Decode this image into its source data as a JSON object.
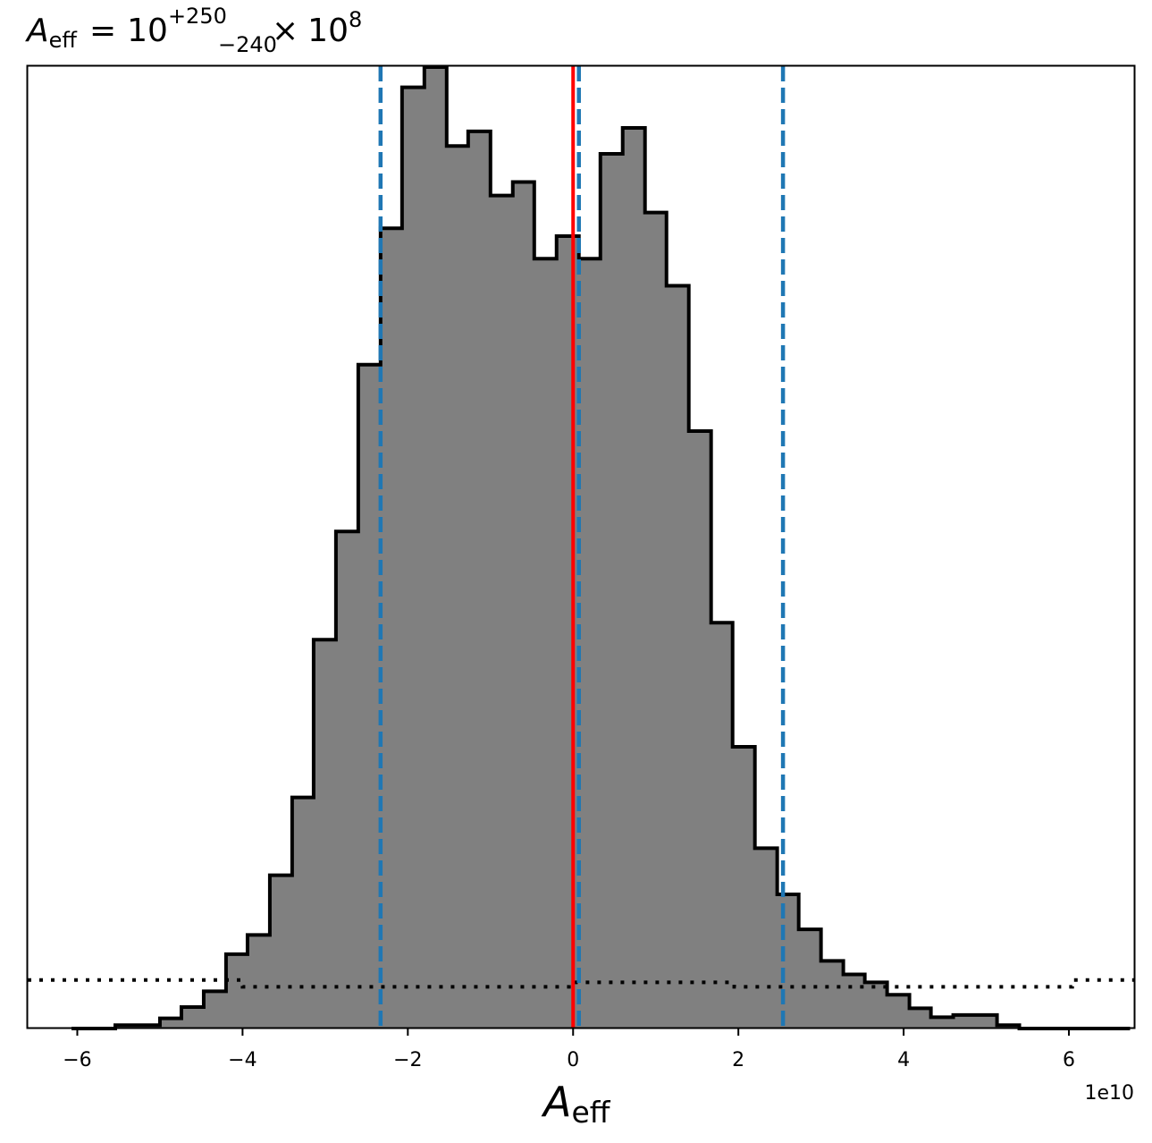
{
  "chart_data": {
    "type": "histogram",
    "title": {
      "base": "A",
      "base_sub": "eff",
      "equals": "=",
      "mantissa": "10",
      "sup": "+250",
      "sub": "−240",
      "times": "×",
      "power_base": "10",
      "power_exp": "8"
    },
    "xlabel": {
      "base": "A",
      "sub": "eff"
    },
    "ylabel": "",
    "x_offset_text": "1e10",
    "xlim": [
      -6.6,
      6.8
    ],
    "xticks": [
      {
        "value": -6,
        "label": "−6"
      },
      {
        "value": -4,
        "label": "−4"
      },
      {
        "value": -2,
        "label": "−2"
      },
      {
        "value": 0,
        "label": "0"
      },
      {
        "value": 2,
        "label": "2"
      },
      {
        "value": 4,
        "label": "4"
      },
      {
        "value": 6,
        "label": "6"
      }
    ],
    "y_ticks_shown": false,
    "grid": false,
    "histogram": {
      "fill_color": "#808080",
      "edge_color": "#000000",
      "bin_edges": [
        -6.07,
        -5.8,
        -5.54,
        -5.27,
        -5.0,
        -4.74,
        -4.47,
        -4.2,
        -3.94,
        -3.67,
        -3.4,
        -3.14,
        -2.87,
        -2.6,
        -2.33,
        -2.07,
        -1.8,
        -1.53,
        -1.27,
        -1.0,
        -0.73,
        -0.47,
        -0.2,
        0.07,
        0.33,
        0.6,
        0.87,
        1.13,
        1.4,
        1.67,
        1.93,
        2.2,
        2.47,
        2.73,
        3.0,
        3.27,
        3.53,
        3.8,
        4.07,
        4.33,
        4.6,
        4.87,
        5.13,
        5.4,
        5.67,
        5.94,
        6.2,
        6.47,
        6.74
      ],
      "counts": [
        0,
        0,
        0.3,
        0.3,
        0.9,
        1.9,
        3.3,
        6.6,
        8.3,
        13.6,
        20.5,
        34.5,
        44.1,
        58.9,
        71.0,
        83.5,
        85.3,
        78.3,
        79.6,
        73.9,
        75.1,
        68.3,
        70.3,
        68.3,
        77.6,
        79.9,
        72.4,
        65.9,
        53.0,
        36.0,
        25.0,
        16.0,
        11.9,
        8.8,
        6.0,
        4.8,
        4.1,
        3.0,
        1.8,
        1.0,
        1.2,
        1.2,
        0.3,
        0,
        0,
        0,
        0,
        0
      ],
      "ymax": 85.3
    },
    "prior": {
      "style": "dotted",
      "color": "#000000",
      "steps": [
        {
          "x0": -6.6,
          "x1": -4.0,
          "y": 4.3
        },
        {
          "x0": -4.0,
          "x1": -0.05,
          "y": 3.7
        },
        {
          "x0": -0.05,
          "x1": 1.95,
          "y": 4.1
        },
        {
          "x0": 1.95,
          "x1": 6.04,
          "y": 3.7
        },
        {
          "x0": 6.04,
          "x1": 6.8,
          "y": 4.3
        }
      ]
    },
    "vertical_lines": [
      {
        "name": "lower-bound",
        "x": -2.33,
        "color": "#1f77b4",
        "style": "dashed"
      },
      {
        "name": "median",
        "x": 0.07,
        "color": "#1f77b4",
        "style": "dashed"
      },
      {
        "name": "upper-bound",
        "x": 2.54,
        "color": "#1f77b4",
        "style": "dashed"
      },
      {
        "name": "true-value",
        "x": 0.0,
        "color": "#ff0000",
        "style": "solid"
      }
    ]
  }
}
